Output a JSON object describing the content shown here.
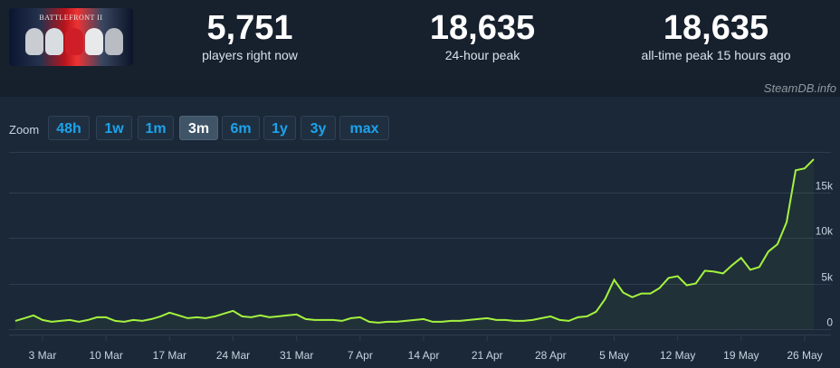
{
  "game": {
    "thumbnail_text": "BATTLEFRONT II"
  },
  "stats": [
    {
      "value": "5,751",
      "label": "players right now"
    },
    {
      "value": "18,635",
      "label": "24-hour peak"
    },
    {
      "value": "18,635",
      "label": "all-time peak 15 hours ago"
    }
  ],
  "credit": "SteamDB.info",
  "zoom": {
    "label": "Zoom",
    "buttons": [
      "48h",
      "1w",
      "1m",
      "3m",
      "6m",
      "1y",
      "3y",
      "max"
    ],
    "active": "3m"
  },
  "colors": {
    "line": "#a4f33e",
    "accent": "#1ca3ec",
    "background": "#1b2838"
  },
  "chart_data": {
    "type": "line",
    "title": "",
    "xlabel": "",
    "ylabel": "",
    "ylim": [
      0,
      20000
    ],
    "grid": true,
    "y_ticks": [
      {
        "value": 0,
        "label": "0"
      },
      {
        "value": 5000,
        "label": "5k"
      },
      {
        "value": 10000,
        "label": "10k"
      },
      {
        "value": 15000,
        "label": "15k"
      }
    ],
    "x_ticks": [
      {
        "day": 3,
        "label": "3 Mar"
      },
      {
        "day": 10,
        "label": "10 Mar"
      },
      {
        "day": 17,
        "label": "17 Mar"
      },
      {
        "day": 24,
        "label": "24 Mar"
      },
      {
        "day": 31,
        "label": "31 Mar"
      },
      {
        "day": 38,
        "label": "7 Apr"
      },
      {
        "day": 45,
        "label": "14 Apr"
      },
      {
        "day": 52,
        "label": "21 Apr"
      },
      {
        "day": 59,
        "label": "28 Apr"
      },
      {
        "day": 66,
        "label": "5 May"
      },
      {
        "day": 73,
        "label": "12 May"
      },
      {
        "day": 80,
        "label": "19 May"
      },
      {
        "day": 87,
        "label": "26 May"
      }
    ],
    "series": [
      {
        "x": [
          0,
          1,
          2,
          3,
          4,
          5,
          6,
          7,
          8,
          9,
          10,
          11,
          12,
          13,
          14,
          15,
          16,
          17,
          18,
          19,
          20,
          21,
          22,
          23,
          24,
          25,
          26,
          27,
          28,
          29,
          30,
          31,
          32,
          33,
          34,
          35,
          36,
          37,
          38,
          39,
          40,
          41,
          42,
          43,
          44,
          45,
          46,
          47,
          48,
          49,
          50,
          51,
          52,
          53,
          54,
          55,
          56,
          57,
          58,
          59,
          60,
          61,
          62,
          63,
          64,
          65,
          66,
          67,
          68,
          69,
          70,
          71,
          72,
          73,
          74,
          75,
          76,
          77,
          78,
          79,
          80,
          81,
          82,
          83,
          84,
          85,
          86,
          87,
          88
        ],
        "y": [
          900,
          1200,
          1500,
          1000,
          800,
          900,
          1000,
          800,
          1000,
          1300,
          1300,
          900,
          800,
          1000,
          900,
          1100,
          1400,
          1800,
          1500,
          1200,
          1300,
          1200,
          1400,
          1700,
          2000,
          1400,
          1300,
          1500,
          1300,
          1400,
          1500,
          1600,
          1100,
          1000,
          1000,
          1000,
          900,
          1200,
          1300,
          800,
          700,
          800,
          800,
          900,
          1000,
          1100,
          800,
          800,
          900,
          900,
          1000,
          1100,
          1200,
          1000,
          1000,
          900,
          900,
          1000,
          1200,
          1400,
          1000,
          900,
          1300,
          1400,
          1900,
          3300,
          5400,
          4000,
          3500,
          3900,
          3900,
          4500,
          5600,
          5800,
          4800,
          5000,
          6400,
          6300,
          6100,
          7000,
          7800,
          6500,
          6800,
          8500,
          9300,
          11700,
          17400,
          17600,
          18600
        ]
      }
    ]
  }
}
